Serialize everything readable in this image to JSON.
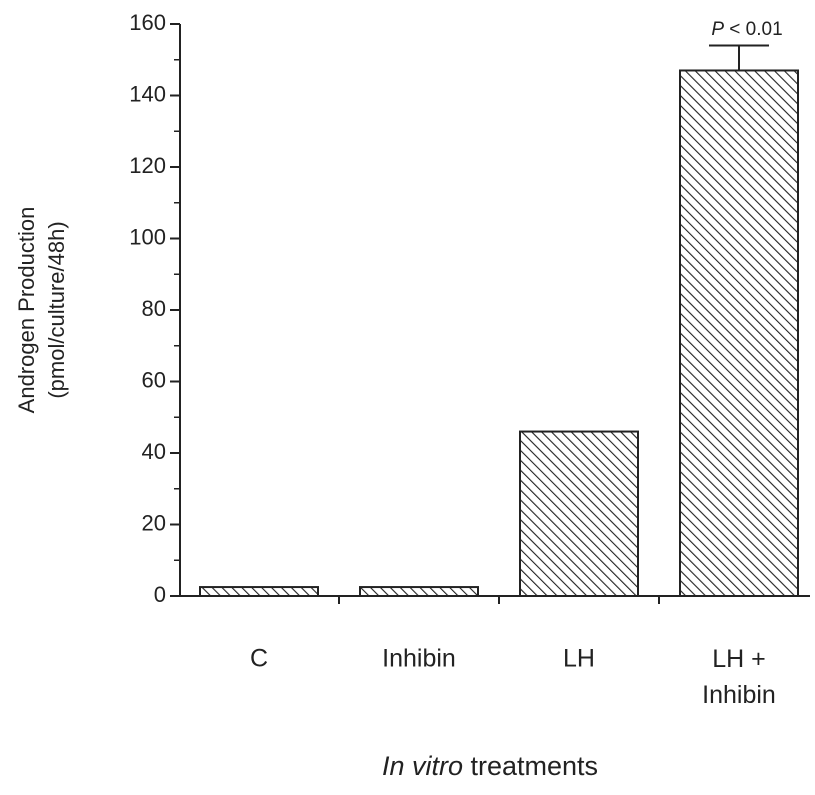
{
  "chart_data": {
    "type": "bar",
    "categories": [
      "C",
      "Inhibin",
      "LH",
      "LH + Inhibin"
    ],
    "values": [
      2.5,
      2.5,
      46,
      147
    ],
    "errors": [
      null,
      null,
      null,
      7
    ],
    "ylabel": [
      "Androgen Production",
      "(pmol/culture/48h)"
    ],
    "xlabel": [
      "In vitro",
      " treatments"
    ],
    "annotation": {
      "category": 3,
      "text": [
        "P",
        " < 0.01"
      ]
    },
    "ylim": [
      0,
      160
    ],
    "yticks": [
      0,
      20,
      40,
      60,
      80,
      100,
      120,
      140,
      160
    ],
    "minor_yticks": [
      10,
      30,
      50,
      70,
      90,
      110,
      130,
      150
    ],
    "color": "#222222",
    "hatch": true
  }
}
